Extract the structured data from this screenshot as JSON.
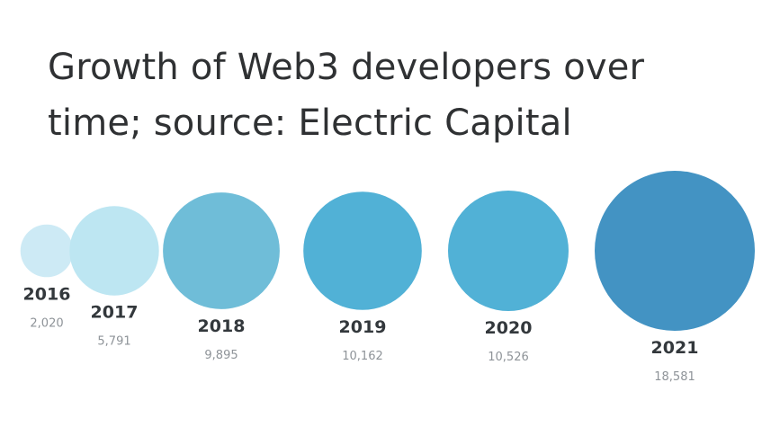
{
  "title": "Growth of Web3 developers over time; source: Electric Capital",
  "chart_data": {
    "type": "bubble",
    "title": "Growth of Web3 developers over time; source: Electric Capital",
    "categories": [
      "2016",
      "2017",
      "2018",
      "2019",
      "2020",
      "2021"
    ],
    "values": [
      2020,
      5791,
      9895,
      10162,
      10526,
      18581
    ],
    "value_labels": [
      "2,020",
      "5,791",
      "9,895",
      "10,162",
      "10,526",
      "18,581"
    ],
    "colors": [
      "#cdeaf5",
      "#bde6f2",
      "#6fbdd8",
      "#51b1d6",
      "#51b1d6",
      "#4393c3"
    ],
    "xlabel": "",
    "ylabel": "",
    "grid": false,
    "legend": "none"
  }
}
